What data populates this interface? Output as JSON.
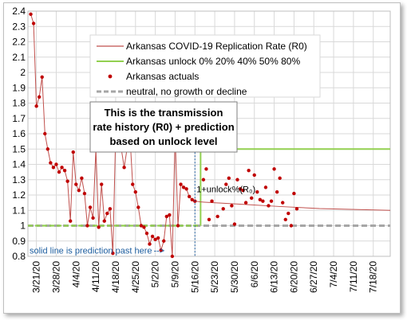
{
  "chart_data": {
    "type": "line",
    "ylim": [
      0.8,
      2.4
    ],
    "yticks": [
      "0.8",
      "0.9",
      "1",
      "1.1",
      "1.2",
      "1.3",
      "1.4",
      "1.5",
      "1.6",
      "1.7",
      "1.8",
      "1.9",
      "2",
      "2.1",
      "2.2",
      "2.3",
      "2.4"
    ],
    "xlim": [
      "2020-03-18",
      "2020-07-24"
    ],
    "xticks": [
      {
        "date": "2020-03-21",
        "label": "3/21/20"
      },
      {
        "date": "2020-03-28",
        "label": "3/28/20"
      },
      {
        "date": "2020-04-04",
        "label": "4/4/20"
      },
      {
        "date": "2020-04-11",
        "label": "4/11/20"
      },
      {
        "date": "2020-04-18",
        "label": "4/18/20"
      },
      {
        "date": "2020-04-25",
        "label": "4/25/20"
      },
      {
        "date": "2020-05-02",
        "label": "5/2/20"
      },
      {
        "date": "2020-05-09",
        "label": "5/9/20"
      },
      {
        "date": "2020-05-16",
        "label": "5/16/20"
      },
      {
        "date": "2020-05-23",
        "label": "5/23/20"
      },
      {
        "date": "2020-05-30",
        "label": "5/30/20"
      },
      {
        "date": "2020-06-06",
        "label": "6/6/20"
      },
      {
        "date": "2020-06-13",
        "label": "6/13/20"
      },
      {
        "date": "2020-06-20",
        "label": "6/20/20"
      },
      {
        "date": "2020-06-27",
        "label": "6/27/20"
      },
      {
        "date": "2020-07-04",
        "label": "7/4/20"
      },
      {
        "date": "2020-07-11",
        "label": "7/11/20"
      },
      {
        "date": "2020-07-18",
        "label": "7/18/20"
      }
    ],
    "grid": true,
    "legend_position": "top-center",
    "legend": [
      "Arkansas COVID-19 Replication Rate (R0)",
      "Arkansas unlock 0% 20% 40% 50% 80%",
      "Arkansas actuals",
      "neutral, no growth or decline"
    ],
    "series": [
      {
        "name": "Arkansas COVID-19 Replication Rate (R0)",
        "color": "#c0504d",
        "points": [
          [
            "2020-03-19",
            2.38
          ],
          [
            "2020-03-20",
            2.32
          ],
          [
            "2020-03-21",
            1.78
          ],
          [
            "2020-03-22",
            1.84
          ],
          [
            "2020-03-23",
            1.97
          ],
          [
            "2020-03-24",
            1.6
          ],
          [
            "2020-03-25",
            1.5
          ],
          [
            "2020-03-26",
            1.41
          ],
          [
            "2020-03-27",
            1.38
          ],
          [
            "2020-03-28",
            1.4
          ],
          [
            "2020-03-29",
            1.35
          ],
          [
            "2020-03-30",
            1.38
          ],
          [
            "2020-03-31",
            1.36
          ],
          [
            "2020-04-01",
            1.29
          ],
          [
            "2020-04-02",
            1.03
          ],
          [
            "2020-04-03",
            1.48
          ],
          [
            "2020-04-04",
            1.27
          ],
          [
            "2020-04-05",
            1.23
          ],
          [
            "2020-04-06",
            1.31
          ],
          [
            "2020-04-07",
            1.21
          ],
          [
            "2020-04-08",
            1.0
          ],
          [
            "2020-04-09",
            1.12
          ],
          [
            "2020-04-10",
            1.05
          ],
          [
            "2020-04-11",
            1.5
          ],
          [
            "2020-04-12",
            0.99
          ],
          [
            "2020-04-13",
            1.27
          ],
          [
            "2020-04-14",
            1.03
          ],
          [
            "2020-04-15",
            1.08
          ],
          [
            "2020-04-16",
            1.11
          ],
          [
            "2020-04-17",
            0.82
          ],
          [
            "2020-04-18",
            1.6
          ],
          [
            "2020-04-19",
            1.6
          ],
          [
            "2020-04-20",
            1.5
          ],
          [
            "2020-04-21",
            1.38
          ],
          [
            "2020-04-22",
            1.5
          ],
          [
            "2020-04-23",
            1.6
          ],
          [
            "2020-04-24",
            1.27
          ],
          [
            "2020-04-25",
            1.22
          ],
          [
            "2020-04-26",
            1.12
          ],
          [
            "2020-04-27",
            1.0
          ],
          [
            "2020-04-28",
            0.99
          ],
          [
            "2020-04-29",
            0.95
          ],
          [
            "2020-04-30",
            0.88
          ],
          [
            "2020-05-01",
            0.93
          ],
          [
            "2020-05-02",
            0.91
          ],
          [
            "2020-05-03",
            0.92
          ],
          [
            "2020-05-04",
            0.84
          ],
          [
            "2020-05-05",
            0.9
          ],
          [
            "2020-05-06",
            1.06
          ],
          [
            "2020-05-07",
            1.07
          ],
          [
            "2020-05-08",
            0.8
          ],
          [
            "2020-05-09",
            1.6
          ],
          [
            "2020-05-10",
            1.0
          ],
          [
            "2020-05-11",
            1.27
          ],
          [
            "2020-05-12",
            1.25
          ],
          [
            "2020-05-13",
            1.24
          ],
          [
            "2020-05-14",
            1.19
          ],
          [
            "2020-05-15",
            1.17
          ],
          [
            "2020-05-16",
            1.16
          ],
          [
            "2020-05-18",
            1.155
          ],
          [
            "2020-06-01",
            1.14
          ],
          [
            "2020-06-15",
            1.125
          ],
          [
            "2020-06-29",
            1.112
          ],
          [
            "2020-07-24",
            1.1
          ]
        ]
      },
      {
        "name": "Arkansas unlock 0% 20% 40% 50% 80%",
        "color": "#92d050",
        "points": [
          [
            "2020-03-18",
            1.0
          ],
          [
            "2020-05-18",
            1.0
          ],
          [
            "2020-05-18",
            1.5
          ],
          [
            "2020-07-24",
            1.5
          ]
        ]
      },
      {
        "name": "Arkansas actuals",
        "color": "#c00000",
        "points": [
          [
            "2020-05-19",
            1.3
          ],
          [
            "2020-05-20",
            1.37
          ],
          [
            "2020-05-21",
            1.04
          ],
          [
            "2020-05-22",
            1.16
          ],
          [
            "2020-05-24",
            1.06
          ],
          [
            "2020-05-26",
            1.11
          ],
          [
            "2020-05-27",
            1.27
          ],
          [
            "2020-05-28",
            1.31
          ],
          [
            "2020-05-29",
            1.13
          ],
          [
            "2020-05-30",
            1.01
          ],
          [
            "2020-05-31",
            1.3
          ],
          [
            "2020-06-01",
            1.24
          ],
          [
            "2020-06-02",
            1.23
          ],
          [
            "2020-06-03",
            1.15
          ],
          [
            "2020-06-04",
            1.36
          ],
          [
            "2020-06-05",
            1.18
          ],
          [
            "2020-06-06",
            1.33
          ],
          [
            "2020-06-07",
            1.22
          ],
          [
            "2020-06-08",
            1.17
          ],
          [
            "2020-06-09",
            1.16
          ],
          [
            "2020-06-10",
            1.25
          ],
          [
            "2020-06-11",
            1.13
          ],
          [
            "2020-06-12",
            1.16
          ],
          [
            "2020-06-13",
            1.37
          ],
          [
            "2020-06-14",
            1.22
          ],
          [
            "2020-06-15",
            1.31
          ],
          [
            "2020-06-16",
            1.15
          ],
          [
            "2020-06-17",
            1.04
          ],
          [
            "2020-06-18",
            1.08
          ],
          [
            "2020-06-19",
            1.0
          ],
          [
            "2020-06-20",
            1.21
          ],
          [
            "2020-06-21",
            1.11
          ]
        ]
      },
      {
        "name": "neutral, no growth or decline",
        "color": "#a6a6a6",
        "points": [
          [
            "2020-03-18",
            1.0
          ],
          [
            "2020-07-24",
            1.0
          ]
        ]
      }
    ],
    "annotations": {
      "callout_line1": "This is the transmission",
      "callout_line2": "rate history (R0) + prediction",
      "callout_line3": "based on unlock level",
      "formula": "1+unlock%(R₀)",
      "solid_note": "solid line is prediction past here",
      "solid_note_arrow": "-->",
      "divider_date": "2020-05-16"
    }
  }
}
